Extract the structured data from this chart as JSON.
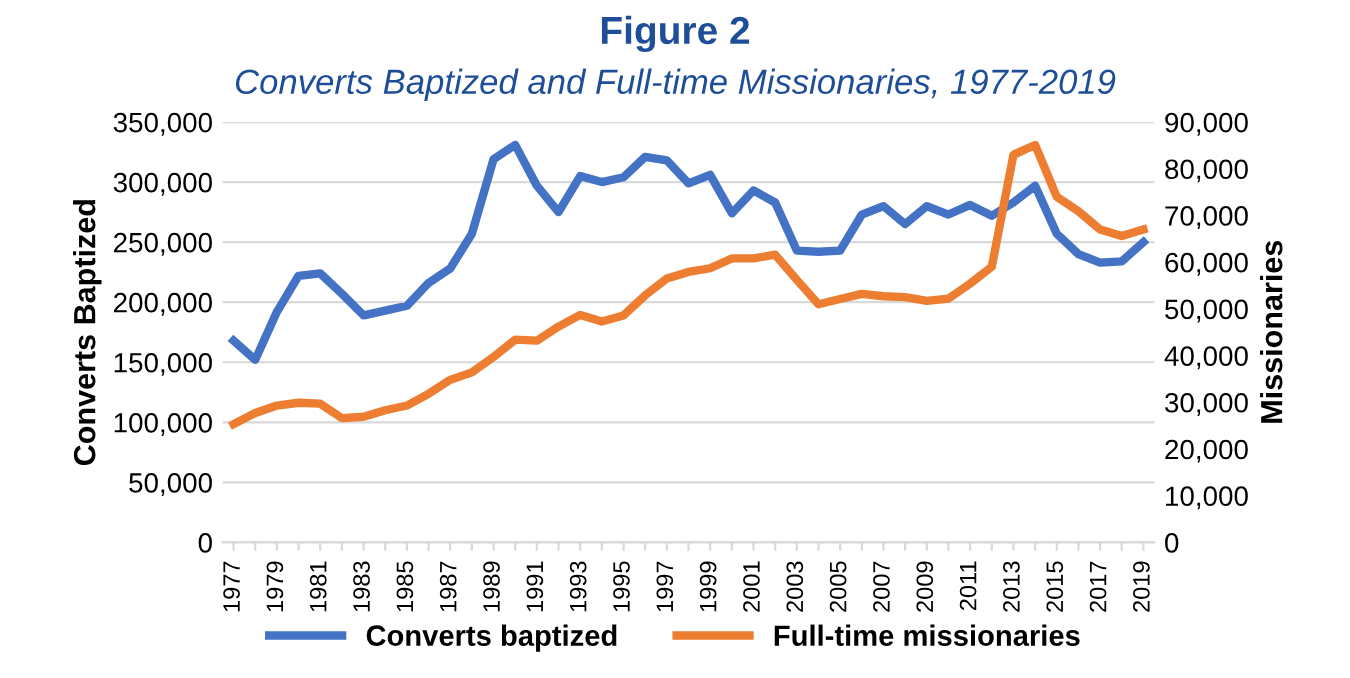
{
  "chart_data": {
    "type": "line",
    "title": "Figure 2",
    "subtitle": "Converts Baptized and Full-time Missionaries, 1977-2019",
    "ylabel": "Converts Baptized",
    "y2label": "Missionaries",
    "categories": [
      "1977",
      null,
      "1979",
      null,
      "1981",
      null,
      "1983",
      null,
      "1985",
      null,
      "1987",
      null,
      "1989",
      null,
      "1991",
      null,
      "1993",
      null,
      "1995",
      null,
      "1997",
      null,
      "1999",
      null,
      "2001",
      null,
      "2003",
      null,
      "2005",
      null,
      "2007",
      null,
      "2009",
      null,
      "2011",
      null,
      "2013",
      null,
      "2015",
      null,
      "2017",
      null,
      "2019"
    ],
    "series": [
      {
        "name": "Converts baptized",
        "color": "#4472c4",
        "values": [
          168000,
          152000,
          192000,
          222000,
          224000,
          207000,
          189000,
          193000,
          197000,
          216000,
          228000,
          257000,
          319000,
          331000,
          297000,
          275000,
          305000,
          300000,
          304000,
          321000,
          318000,
          299000,
          306000,
          274000,
          293000,
          283000,
          243000,
          242000,
          243000,
          273000,
          280000,
          265000,
          280000,
          273000,
          281000,
          272000,
          283000,
          297000,
          257000,
          240000,
          233000,
          234000,
          250000
        ]
      },
      {
        "name": "Full-time missionaries",
        "color": "#ed7d31",
        "axis": "y2",
        "values": [
          25300,
          27700,
          29300,
          29900,
          29700,
          26600,
          26900,
          28300,
          29300,
          31800,
          34800,
          36400,
          39700,
          43400,
          43200,
          46200,
          48700,
          47300,
          48600,
          52900,
          56500,
          57900,
          58700,
          60800,
          60800,
          61600,
          56200,
          51000,
          52100,
          53200,
          52700,
          52500,
          51700,
          52200,
          55400,
          59000,
          83000,
          85100,
          74000,
          70900,
          67000,
          65600,
          67000
        ]
      }
    ],
    "ylim": [
      0,
      350000
    ],
    "yticks": [
      {
        "value": 0,
        "label": "0"
      },
      {
        "value": 50000,
        "label": "50,000"
      },
      {
        "value": 100000,
        "label": "100,000"
      },
      {
        "value": 150000,
        "label": "150,000"
      },
      {
        "value": 200000,
        "label": "200,000"
      },
      {
        "value": 250000,
        "label": "250,000"
      },
      {
        "value": 300000,
        "label": "300,000"
      },
      {
        "value": 350000,
        "label": "350,000"
      }
    ],
    "y2lim": [
      0,
      90000
    ],
    "y2ticks": [
      {
        "value": 0,
        "label": "0"
      },
      {
        "value": 10000,
        "label": "10,000"
      },
      {
        "value": 20000,
        "label": "20,000"
      },
      {
        "value": 30000,
        "label": "30,000"
      },
      {
        "value": 40000,
        "label": "40,000"
      },
      {
        "value": 50000,
        "label": "50,000"
      },
      {
        "value": 60000,
        "label": "60,000"
      },
      {
        "value": 70000,
        "label": "70,000"
      },
      {
        "value": 80000,
        "label": "80,000"
      },
      {
        "value": 90000,
        "label": "90,000"
      }
    ],
    "grid": "y",
    "legend": "bottom",
    "marker": "none",
    "line_style": "solid"
  }
}
